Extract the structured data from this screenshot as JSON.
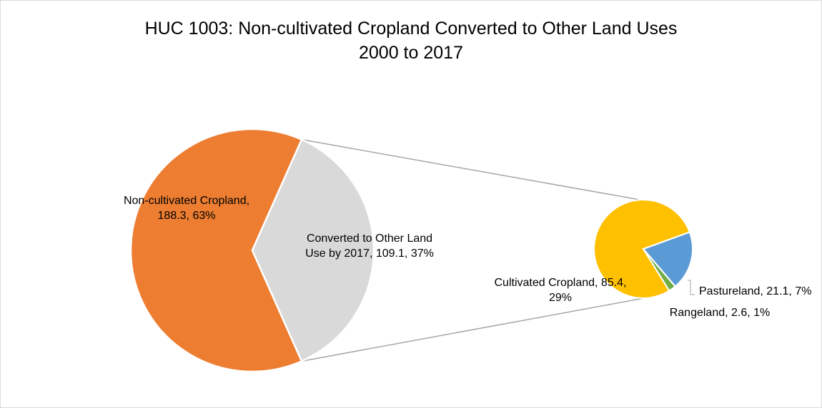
{
  "chart_data": {
    "type": "pie",
    "subtype": "pie-of-pie",
    "title": [
      "HUC 1003: Non-cultivated Cropland Converted to Other Land Uses",
      "2000 to 2017"
    ],
    "main_pie": {
      "slices": [
        {
          "name": "Non-cultivated Cropland",
          "value": 188.3,
          "percent": 63,
          "color": "#ED7D31",
          "label_lines": [
            "Non-cultivated Cropland,",
            "188.3, 63%"
          ]
        },
        {
          "name": "Converted to Other Land Use by 2017",
          "value": 109.1,
          "percent": 37,
          "color": "#D9D9D9",
          "label_lines": [
            "Converted to Other Land",
            "Use by 2017, 109.1, 37%"
          ]
        }
      ]
    },
    "secondary_pie": {
      "parent": "Converted to Other Land Use by 2017",
      "slices": [
        {
          "name": "Cultivated Cropland",
          "value": 85.4,
          "percent": 29,
          "color": "#FFC000",
          "label_lines": [
            "Cultivated Cropland, 85.4,",
            "29%"
          ]
        },
        {
          "name": "Pastureland",
          "value": 21.1,
          "percent": 7,
          "color": "#5B9BD5",
          "label_lines": [
            "Pastureland, 21.1, 7%"
          ]
        },
        {
          "name": "Rangeland",
          "value": 2.6,
          "percent": 1,
          "color": "#70AD47",
          "label_lines": [
            "Rangeland, 2.6, 1%"
          ]
        }
      ]
    },
    "connector_color": "#A6A6A6",
    "legend": "none"
  }
}
